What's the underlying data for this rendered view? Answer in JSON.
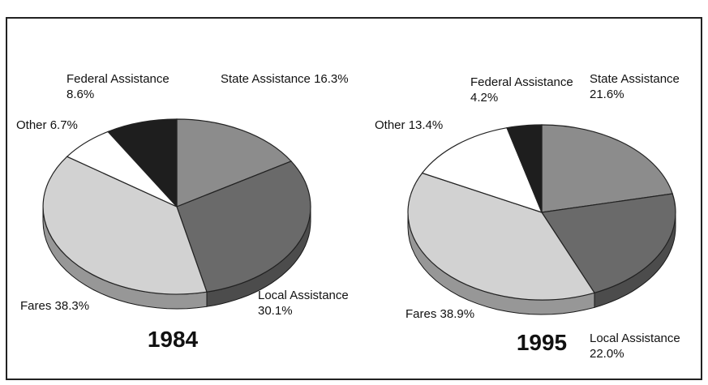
{
  "chart_data": [
    {
      "type": "pie",
      "title": "1984",
      "categories": [
        "State Assistance",
        "Local Assistance",
        "Fares",
        "Other",
        "Federal Assistance"
      ],
      "values": [
        16.3,
        30.1,
        38.3,
        6.7,
        8.6
      ],
      "value_labels": [
        "16.3%",
        "30.1%",
        "38.3%",
        "6.7%",
        "8.6%"
      ],
      "colors": [
        "#8c8c8c",
        "#6a6a6a",
        "#d2d2d2",
        "#ffffff",
        "#1e1e1e"
      ]
    },
    {
      "type": "pie",
      "title": "1995",
      "categories": [
        "State Assistance",
        "Local Assistance",
        "Fares",
        "Other",
        "Federal Assistance"
      ],
      "values": [
        21.6,
        22.0,
        38.9,
        13.4,
        4.2
      ],
      "value_labels": [
        "21.6%",
        "22.0%",
        "38.9%",
        "13.4%",
        "4.2%"
      ],
      "colors": [
        "#8c8c8c",
        "#6a6a6a",
        "#d2d2d2",
        "#ffffff",
        "#1e1e1e"
      ]
    }
  ]
}
